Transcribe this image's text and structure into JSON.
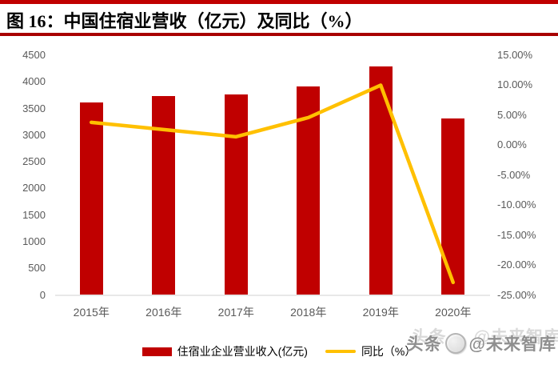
{
  "figure": {
    "title": "图 16：中国住宿业营收（亿元）及同比（%）"
  },
  "colors": {
    "accent_red": "#C00000",
    "rule_red": "#A80000",
    "bar_red": "#C00000",
    "line_yellow": "#FFC000",
    "axis_text": "#595959",
    "axis_line": "#D9D9D9",
    "watermark_gray": "#8f8f8f"
  },
  "chart_data": {
    "type": "bar",
    "subtype": "combo-bar-line-dual-axis",
    "title": "图 16：中国住宿业营收（亿元）及同比（%）",
    "categories": [
      "2015年",
      "2016年",
      "2017年",
      "2018年",
      "2019年",
      "2020年"
    ],
    "series": [
      {
        "name": "住宿业企业营业收入(亿元)",
        "type": "bar",
        "y_axis": "left",
        "color": "#C00000",
        "values": [
          3610,
          3730,
          3760,
          3910,
          4290,
          3310
        ]
      },
      {
        "name": "同比（%）",
        "type": "line",
        "y_axis": "right",
        "color": "#FFC000",
        "values": [
          3.8,
          2.6,
          1.4,
          4.6,
          10.0,
          -22.9
        ]
      }
    ],
    "xlabel": "",
    "left_axis": {
      "min": 0,
      "max": 4500,
      "step": 500,
      "tick_labels": [
        "4500",
        "4000",
        "3500",
        "3000",
        "2500",
        "2000",
        "1500",
        "1000",
        "500",
        "0"
      ]
    },
    "right_axis": {
      "min": -25,
      "max": 15,
      "step": 5,
      "tick_labels": [
        "15.00%",
        "10.00%",
        "5.00%",
        "0.00%",
        "-5.00%",
        "-10.00%",
        "-15.00%",
        "-20.00%",
        "-25.00%"
      ]
    },
    "grid": false,
    "legend_position": "bottom"
  },
  "legend": {
    "items": [
      {
        "label": "住宿业企业营业收入(亿元)",
        "swatch": "bar"
      },
      {
        "label": "同比（%）",
        "swatch": "line"
      }
    ]
  },
  "watermark": {
    "text_left": "头条",
    "icon": "toutiao-logo-icon",
    "text_right": "@未来智库"
  }
}
